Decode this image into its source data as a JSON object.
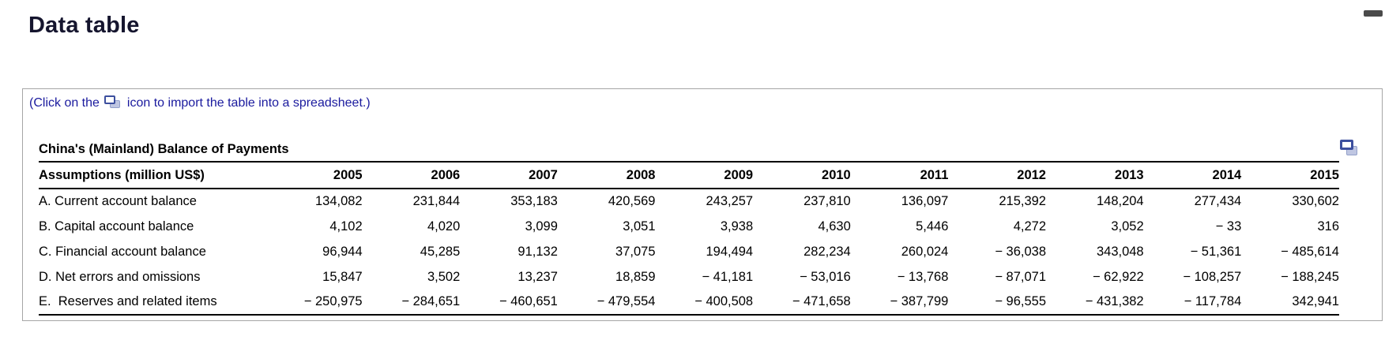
{
  "page": {
    "title": "Data table"
  },
  "chrome": {
    "minimize_dash_icon": "window-minimize-dash"
  },
  "panel": {
    "instruction": {
      "prefix": "(Click on the",
      "suffix": "icon to import the table into a spreadsheet.)",
      "icon": "import-to-spreadsheet-icon"
    },
    "corner_icon": "import-to-spreadsheet-icon"
  },
  "table": {
    "title": "China's (Mainland) Balance of Payments",
    "header_label": "Assumptions (million US$)",
    "years": [
      "2005",
      "2006",
      "2007",
      "2008",
      "2009",
      "2010",
      "2011",
      "2012",
      "2013",
      "2014",
      "2015"
    ],
    "rows": [
      {
        "label": "A. Current account balance",
        "values": [
          "134,082",
          "231,844",
          "353,183",
          "420,569",
          "243,257",
          "237,810",
          "136,097",
          "215,392",
          "148,204",
          "277,434",
          "330,602"
        ]
      },
      {
        "label": "B. Capital account balance",
        "values": [
          "4,102",
          "4,020",
          "3,099",
          "3,051",
          "3,938",
          "4,630",
          "5,446",
          "4,272",
          "3,052",
          "− 33",
          "316"
        ]
      },
      {
        "label": "C. Financial account balance",
        "values": [
          "96,944",
          "45,285",
          "91,132",
          "37,075",
          "194,494",
          "282,234",
          "260,024",
          "− 36,038",
          "343,048",
          "− 51,361",
          "− 485,614"
        ]
      },
      {
        "label": "D. Net errors and omissions",
        "values": [
          "15,847",
          "3,502",
          "13,237",
          "18,859",
          "− 41,181",
          "− 53,016",
          "− 13,768",
          "− 87,071",
          "− 62,922",
          "− 108,257",
          "− 188,245"
        ]
      },
      {
        "label": "E.  Reserves and related items",
        "values": [
          "− 250,975",
          "− 284,651",
          "− 460,651",
          "− 479,554",
          "− 400,508",
          "− 471,658",
          "− 387,799",
          "− 96,555",
          "− 431,382",
          "− 117,784",
          "342,941"
        ]
      }
    ]
  },
  "colors": {
    "accent_blue": "#1a1a9e",
    "title_text": "#15152e",
    "table_text": "#000000",
    "panel_border": "#a6a6a6",
    "icon_front_border": "#3c4f9e",
    "icon_back_fill": "#bfc6e2",
    "dash": "#4a4a4a"
  }
}
